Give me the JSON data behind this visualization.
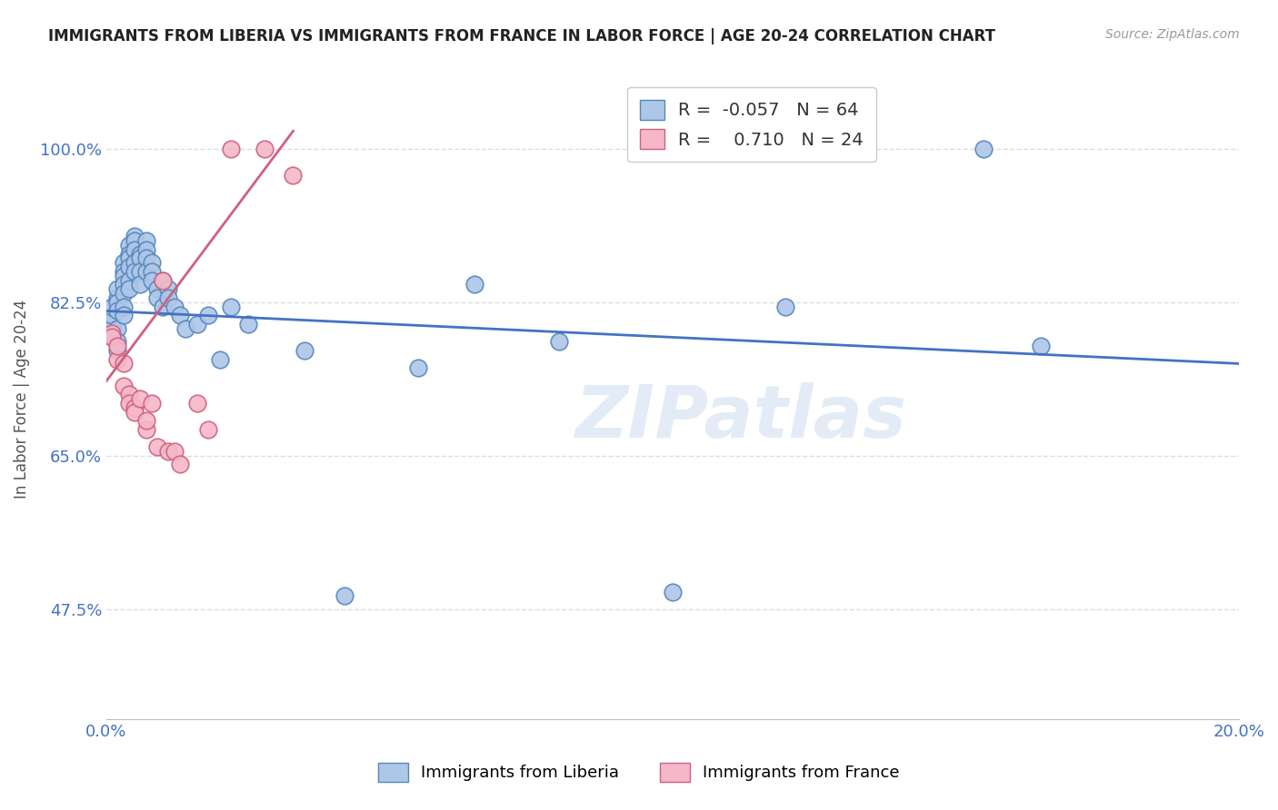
{
  "title": "IMMIGRANTS FROM LIBERIA VS IMMIGRANTS FROM FRANCE IN LABOR FORCE | AGE 20-24 CORRELATION CHART",
  "source": "Source: ZipAtlas.com",
  "ylabel_label": "In Labor Force | Age 20-24",
  "xlim": [
    0.0,
    0.2
  ],
  "ylim": [
    0.35,
    1.08
  ],
  "ytick_values": [
    0.475,
    0.65,
    0.825,
    1.0
  ],
  "ytick_labels": [
    "47.5%",
    "65.0%",
    "82.5%",
    "100.0%"
  ],
  "xtick_values": [
    0.0,
    0.2
  ],
  "xtick_labels": [
    "0.0%",
    "20.0%"
  ],
  "grid_color": "#dddddd",
  "background_color": "#ffffff",
  "liberia_color": "#aec6e8",
  "liberia_edge_color": "#5588bb",
  "france_color": "#f4b8c8",
  "france_edge_color": "#d06080",
  "liberia_line_color": "#4472c4",
  "france_line_color": "#d06080",
  "legend_r_liberia": "-0.057",
  "legend_n_liberia": "64",
  "legend_r_france": "0.710",
  "legend_n_france": "24",
  "r_color_liberia": "#e05050",
  "r_color_france": "#4472c4",
  "n_color": "#4472c4",
  "watermark": "ZIPatlas",
  "lib_trend_x0": 0.0,
  "lib_trend_y0": 0.815,
  "lib_trend_x1": 0.2,
  "lib_trend_y1": 0.755,
  "fra_trend_x0": 0.0,
  "fra_trend_y0": 0.735,
  "fra_trend_x1": 0.033,
  "fra_trend_y1": 1.02,
  "liberia_x": [
    0.001,
    0.001,
    0.001,
    0.001,
    0.001,
    0.002,
    0.002,
    0.002,
    0.002,
    0.002,
    0.002,
    0.002,
    0.003,
    0.003,
    0.003,
    0.003,
    0.003,
    0.003,
    0.003,
    0.004,
    0.004,
    0.004,
    0.004,
    0.004,
    0.004,
    0.005,
    0.005,
    0.005,
    0.005,
    0.005,
    0.006,
    0.006,
    0.006,
    0.006,
    0.007,
    0.007,
    0.007,
    0.007,
    0.008,
    0.008,
    0.008,
    0.009,
    0.009,
    0.01,
    0.01,
    0.011,
    0.011,
    0.012,
    0.013,
    0.014,
    0.016,
    0.018,
    0.02,
    0.022,
    0.025,
    0.035,
    0.042,
    0.055,
    0.065,
    0.08,
    0.1,
    0.12,
    0.155,
    0.165
  ],
  "liberia_y": [
    0.795,
    0.8,
    0.81,
    0.82,
    0.785,
    0.83,
    0.84,
    0.825,
    0.815,
    0.795,
    0.78,
    0.77,
    0.87,
    0.86,
    0.855,
    0.845,
    0.835,
    0.82,
    0.81,
    0.89,
    0.88,
    0.875,
    0.865,
    0.85,
    0.84,
    0.9,
    0.895,
    0.885,
    0.87,
    0.86,
    0.88,
    0.875,
    0.86,
    0.845,
    0.895,
    0.885,
    0.875,
    0.86,
    0.87,
    0.86,
    0.85,
    0.84,
    0.83,
    0.85,
    0.82,
    0.84,
    0.83,
    0.82,
    0.81,
    0.795,
    0.8,
    0.81,
    0.76,
    0.82,
    0.8,
    0.77,
    0.49,
    0.75,
    0.845,
    0.78,
    0.495,
    0.82,
    1.0,
    0.775
  ],
  "france_x": [
    0.001,
    0.001,
    0.002,
    0.002,
    0.003,
    0.003,
    0.004,
    0.004,
    0.005,
    0.005,
    0.006,
    0.007,
    0.007,
    0.008,
    0.009,
    0.01,
    0.011,
    0.012,
    0.013,
    0.016,
    0.018,
    0.022,
    0.028,
    0.033
  ],
  "france_y": [
    0.79,
    0.785,
    0.76,
    0.775,
    0.755,
    0.73,
    0.72,
    0.71,
    0.705,
    0.7,
    0.715,
    0.68,
    0.69,
    0.71,
    0.66,
    0.85,
    0.655,
    0.655,
    0.64,
    0.71,
    0.68,
    1.0,
    1.0,
    0.97
  ]
}
